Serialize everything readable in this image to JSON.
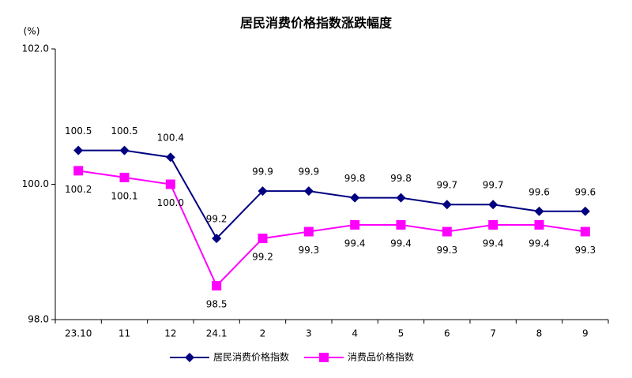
{
  "chart_data": {
    "type": "line",
    "title": "居民消费价格指数涨跌幅度",
    "y_unit": "(%)",
    "categories": [
      "23.10",
      "11",
      "12",
      "24.1",
      "2",
      "3",
      "4",
      "5",
      "6",
      "7",
      "8",
      "9"
    ],
    "series": [
      {
        "name": "居民消费价格指数",
        "color": "#000080",
        "marker": "diamond",
        "values": [
          100.5,
          100.5,
          100.4,
          99.2,
          99.9,
          99.9,
          99.8,
          99.8,
          99.7,
          99.7,
          99.6,
          99.6
        ],
        "value_labels": [
          "100.5",
          "100.5",
          "100.4",
          "99.2",
          "99.9",
          "99.9",
          "99.8",
          "99.8",
          "99.7",
          "99.7",
          "99.6",
          "99.6"
        ]
      },
      {
        "name": "消费品价格指数",
        "color": "#ff00ff",
        "marker": "square",
        "values": [
          100.2,
          100.1,
          100.0,
          98.5,
          99.2,
          99.3,
          99.4,
          99.4,
          99.3,
          99.4,
          99.4,
          99.3
        ],
        "value_labels": [
          "100.2",
          "100.1",
          "100.0",
          "98.5",
          "99.2",
          "99.3",
          "99.4",
          "99.4",
          "99.3",
          "99.4",
          "99.4",
          "99.3"
        ]
      }
    ],
    "ylim": [
      98,
      102
    ],
    "yticks": [
      {
        "value": 98,
        "label": "98.0"
      },
      {
        "value": 100,
        "label": "100.0"
      },
      {
        "value": 102,
        "label": "102.0"
      }
    ],
    "grid": false,
    "legend": "bottom"
  }
}
